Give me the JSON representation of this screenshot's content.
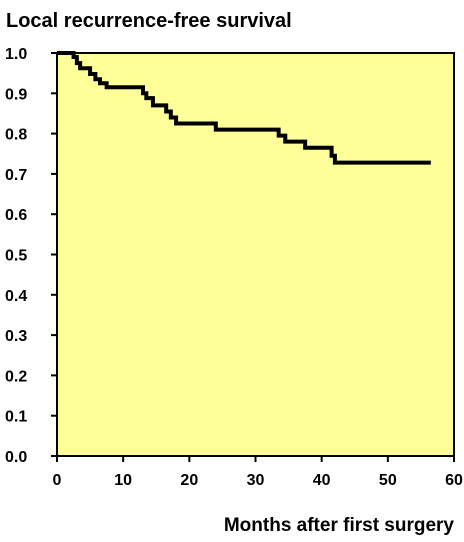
{
  "chart_data": {
    "type": "line",
    "step": true,
    "title": "Local recurrence-free survival",
    "xlabel": "Months after first surgery",
    "ylabel": "",
    "xlim": [
      0,
      60
    ],
    "ylim": [
      0.0,
      1.0
    ],
    "x_ticks": [
      "0",
      "10",
      "20",
      "30",
      "40",
      "50",
      "60"
    ],
    "y_ticks": [
      "0.0",
      "0.1",
      "0.2",
      "0.3",
      "0.4",
      "0.5",
      "0.6",
      "0.7",
      "0.8",
      "0.9",
      "1.0"
    ],
    "grid": false,
    "legend": "none",
    "colors": {
      "plot_background": "#ffff99",
      "line": "#000000",
      "axes": "#000000"
    },
    "series": [
      {
        "points": [
          [
            0,
            1.0
          ],
          [
            2.5,
            1.0
          ],
          [
            2.5,
            0.99
          ],
          [
            3.0,
            0.99
          ],
          [
            3.0,
            0.975
          ],
          [
            3.5,
            0.975
          ],
          [
            3.5,
            0.962
          ],
          [
            5.0,
            0.962
          ],
          [
            5.0,
            0.948
          ],
          [
            5.8,
            0.948
          ],
          [
            5.8,
            0.935
          ],
          [
            6.5,
            0.935
          ],
          [
            6.5,
            0.925
          ],
          [
            7.5,
            0.925
          ],
          [
            7.5,
            0.915
          ],
          [
            13.0,
            0.915
          ],
          [
            13.0,
            0.9
          ],
          [
            13.5,
            0.9
          ],
          [
            13.5,
            0.888
          ],
          [
            14.5,
            0.888
          ],
          [
            14.5,
            0.87
          ],
          [
            16.5,
            0.87
          ],
          [
            16.5,
            0.855
          ],
          [
            17.2,
            0.855
          ],
          [
            17.2,
            0.84
          ],
          [
            18.0,
            0.84
          ],
          [
            18.0,
            0.825
          ],
          [
            24.0,
            0.825
          ],
          [
            24.0,
            0.81
          ],
          [
            33.5,
            0.81
          ],
          [
            33.5,
            0.795
          ],
          [
            34.5,
            0.795
          ],
          [
            34.5,
            0.78
          ],
          [
            37.5,
            0.78
          ],
          [
            37.5,
            0.765
          ],
          [
            41.5,
            0.765
          ],
          [
            41.5,
            0.745
          ],
          [
            42.0,
            0.745
          ],
          [
            42.0,
            0.728
          ],
          [
            56.5,
            0.728
          ]
        ]
      }
    ]
  }
}
